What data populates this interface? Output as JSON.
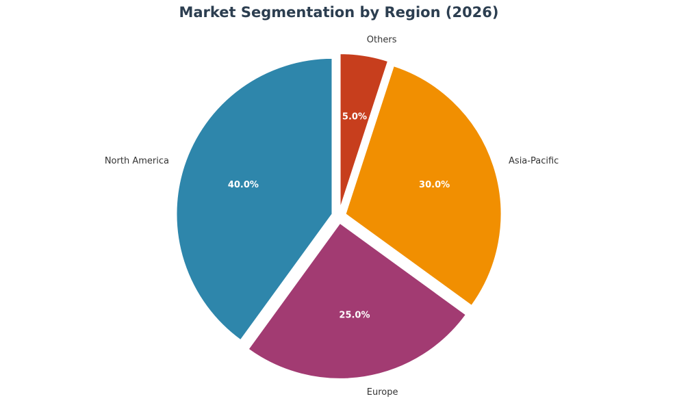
{
  "chart_data": {
    "type": "pie",
    "title": "Market Segmentation by Region (2026)",
    "categories": [
      "North America",
      "Europe",
      "Asia-Pacific",
      "Others"
    ],
    "values": [
      40,
      25,
      30,
      5
    ],
    "value_labels": [
      "40.0%",
      "25.0%",
      "30.0%",
      "5.0%"
    ],
    "colors": [
      "#2e86ab",
      "#a23b72",
      "#f18f01",
      "#c73e1d"
    ]
  }
}
